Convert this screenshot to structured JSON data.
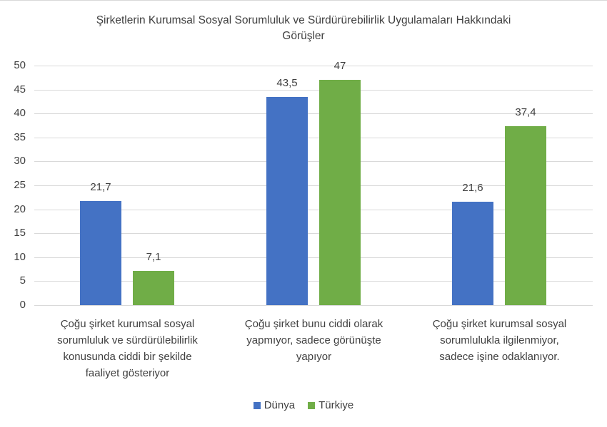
{
  "chart_data": {
    "type": "bar",
    "title": "Şirketlerin Kurumsal Sosyal Sorumluluk ve Sürdürürebilirlik Uygulamaları Hakkındaki Görüşler",
    "title_lines": [
      "Şirketlerin Kurumsal Sosyal Sorumluluk ve Sürdürürebilirlik Uygulamaları Hakkındaki",
      "Görüşler"
    ],
    "categories": [
      "Çoğu şirket kurumsal sosyal sorumluluk ve sürdürülebilirlik konusunda ciddi bir şekilde faaliyet gösteriyor",
      "Çoğu şirket bunu ciddi olarak yapmıyor, sadece görünüşte yapıyor",
      "Çoğu şirket kurumsal sosyal sorumlulukla ilgilenmiyor, sadece işine odaklanıyor."
    ],
    "category_lines": [
      [
        "Çoğu şirket kurumsal sosyal",
        "sorumluluk ve sürdürülebilirlik",
        "konusunda ciddi bir şekilde",
        "faaliyet gösteriyor"
      ],
      [
        "Çoğu şirket bunu ciddi olarak",
        "yapmıyor, sadece görünüşte",
        "yapıyor"
      ],
      [
        "Çoğu şirket kurumsal sosyal",
        "sorumlulukla ilgilenmiyor,",
        "sadece işine odaklanıyor."
      ]
    ],
    "series": [
      {
        "name": "Dünya",
        "color": "#4472c4",
        "values": [
          21.7,
          43.5,
          21.6
        ],
        "labels": [
          "21,7",
          "43,5",
          "21,6"
        ]
      },
      {
        "name": "Türkiye",
        "color": "#70ad47",
        "values": [
          7.1,
          47,
          37.4
        ],
        "labels": [
          "7,1",
          "47",
          "37,4"
        ]
      }
    ],
    "xlabel": "",
    "ylabel": "",
    "ylim": [
      0,
      50
    ],
    "yticks": [
      "0",
      "5",
      "10",
      "15",
      "20",
      "25",
      "30",
      "35",
      "40",
      "45",
      "50"
    ],
    "grid": true,
    "legend_position": "bottom"
  },
  "legend": {
    "items": [
      {
        "label": "Dünya",
        "color": "#4472c4"
      },
      {
        "label": "Türkiye",
        "color": "#70ad47"
      }
    ]
  }
}
